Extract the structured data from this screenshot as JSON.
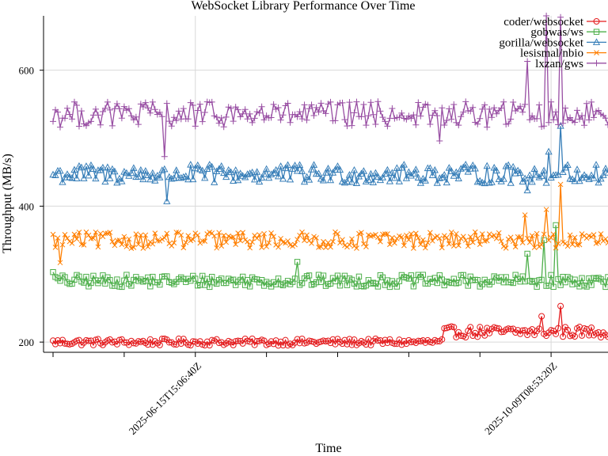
{
  "chart_data": {
    "type": "line",
    "title": "WebSocket Library Performance Over Time",
    "xlabel": "Time",
    "ylabel": "Throughput (MB/s)",
    "x_ticks": [
      {
        "label": "2025-06-15T15:06:40Z",
        "index": 60
      },
      {
        "label": "2025-10-09T08:53:20Z",
        "index": 210
      }
    ],
    "y_ticks": [
      200,
      400,
      600
    ],
    "ylim": [
      185,
      680
    ],
    "n_points": 235,
    "grid": true,
    "legend_position": "top-right",
    "series": [
      {
        "name": "coder/websocket",
        "color": "#e41a1c",
        "marker": "circle",
        "base": 200,
        "noise": 5,
        "segments": [
          {
            "from": 165,
            "base": 215,
            "noise": 8
          }
        ],
        "spikes": [
          [
            214,
            253
          ],
          [
            206,
            238
          ]
        ]
      },
      {
        "name": "gobwas/ws",
        "color": "#4daf4a",
        "marker": "square",
        "base": 290,
        "noise": 9,
        "segments": [],
        "spikes": [
          [
            200,
            330
          ],
          [
            212,
            372
          ],
          [
            207,
            350
          ],
          [
            103,
            318
          ],
          [
            0,
            303
          ]
        ]
      },
      {
        "name": "gorilla/websocket",
        "color": "#377eb8",
        "marker": "triangle",
        "base": 447,
        "noise": 14,
        "segments": [],
        "spikes": [
          [
            214,
            518
          ],
          [
            209,
            480
          ],
          [
            48,
            407
          ],
          [
            200,
            423
          ]
        ]
      },
      {
        "name": "lesismal/nbio",
        "color": "#ff7f00",
        "marker": "x",
        "base": 350,
        "noise": 12,
        "segments": [],
        "spikes": [
          [
            214,
            432
          ],
          [
            208,
            395
          ],
          [
            199,
            387
          ],
          [
            3,
            317
          ]
        ]
      },
      {
        "name": "lxzan/gws",
        "color": "#984ea3",
        "marker": "plus",
        "base": 535,
        "noise": 19,
        "segments": [],
        "spikes": [
          [
            208,
            680
          ],
          [
            214,
            678
          ],
          [
            200,
            613
          ],
          [
            47,
            473
          ],
          [
            163,
            496
          ]
        ]
      }
    ]
  }
}
